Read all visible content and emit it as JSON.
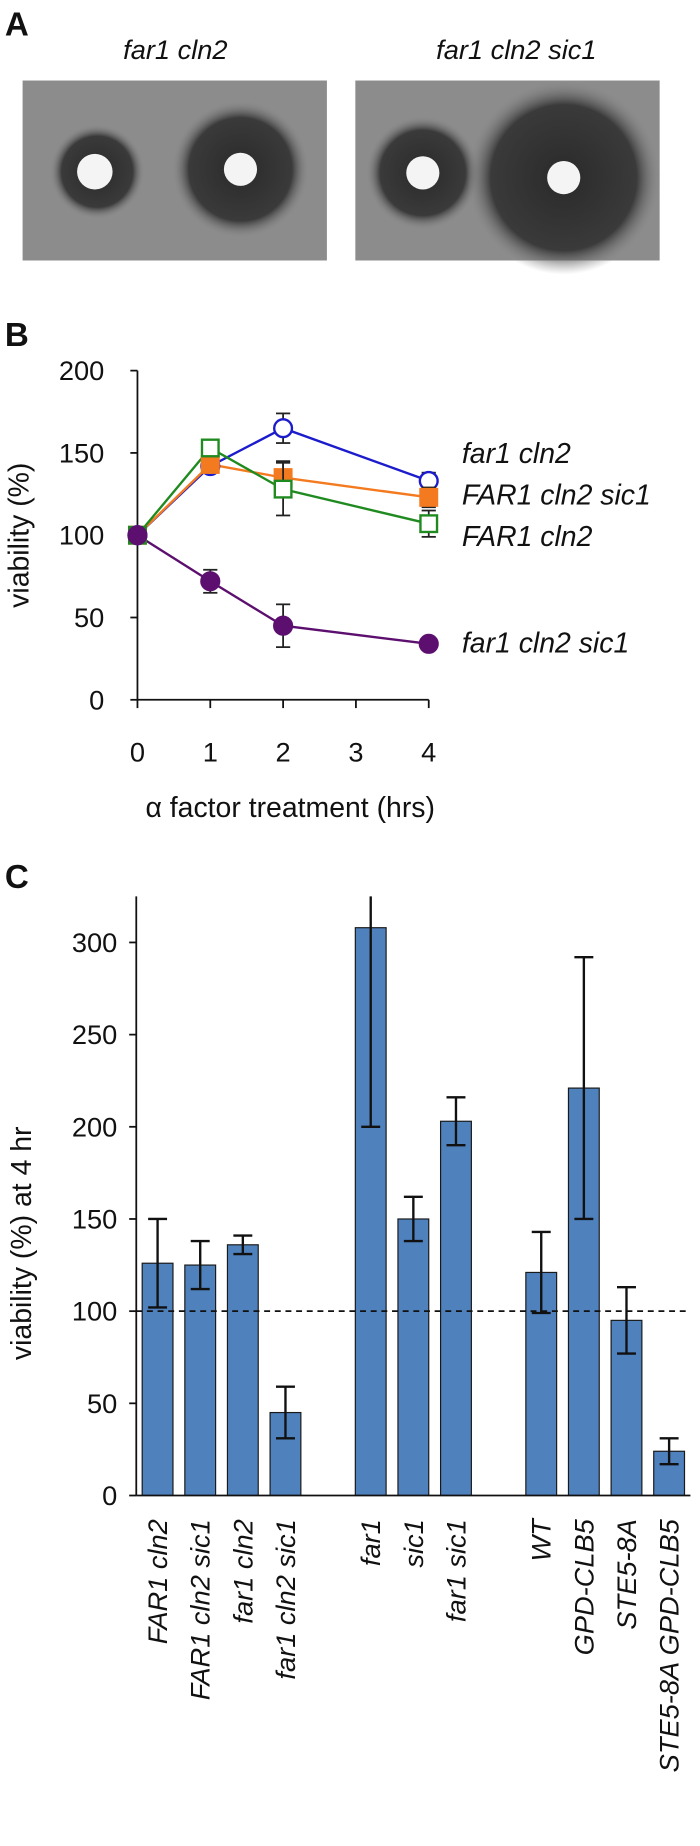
{
  "panel_a": {
    "label": "A",
    "captions": [
      "far1 cln2",
      "far1 cln2 sic1"
    ]
  },
  "chart_data": [
    {
      "label": "B",
      "type": "line",
      "x_label": "α factor treatment (hrs)",
      "y_label": "viability (%)",
      "x": [
        0,
        1,
        2,
        4
      ],
      "xlim": [
        0,
        4
      ],
      "xticks": [
        0,
        1,
        2,
        3,
        4
      ],
      "ylim": [
        0,
        200
      ],
      "yticks": [
        0,
        50,
        100,
        150,
        200
      ],
      "series": [
        {
          "name": "far1 cln2",
          "color": "#1c1ccc",
          "marker": "circle-open",
          "values": [
            100,
            142,
            165,
            133
          ],
          "errors": [
            0,
            4,
            9,
            5
          ]
        },
        {
          "name": "FAR1 cln2 sic1",
          "color": "#f47a20",
          "marker": "square-filled",
          "values": [
            100,
            143,
            135,
            123
          ],
          "errors": [
            0,
            4,
            10,
            6
          ]
        },
        {
          "name": "FAR1 cln2",
          "color": "#1f8a1f",
          "marker": "square-open",
          "values": [
            100,
            153,
            128,
            107
          ],
          "errors": [
            0,
            4,
            16,
            8
          ]
        },
        {
          "name": "far1 cln2 sic1",
          "color": "#5c0f6e",
          "marker": "circle-filled",
          "values": [
            100,
            72,
            45,
            34
          ],
          "errors": [
            0,
            7,
            13,
            2
          ]
        }
      ]
    },
    {
      "label": "C",
      "type": "bar",
      "y_label": "viability (%) at 4 hr",
      "color": "#4f81bd",
      "categories": [
        "FAR1 cln2",
        "FAR1 cln2 sic1",
        "far1 cln2",
        "far1 cln2 sic1",
        null,
        "far1",
        "sic1",
        "far1 sic1",
        null,
        "WT",
        "GPD-CLB5",
        "STE5-8A",
        "STE5-8A GPD-CLB5"
      ],
      "values": [
        126,
        125,
        136,
        45,
        null,
        308,
        150,
        203,
        null,
        121,
        221,
        95,
        24
      ],
      "errors": [
        24,
        13,
        5,
        14,
        null,
        108,
        12,
        13,
        null,
        22,
        71,
        18,
        7
      ],
      "ylim": [
        0,
        325
      ],
      "yticks": [
        0,
        50,
        100,
        150,
        200,
        250,
        300
      ],
      "reference_line": 100
    }
  ]
}
